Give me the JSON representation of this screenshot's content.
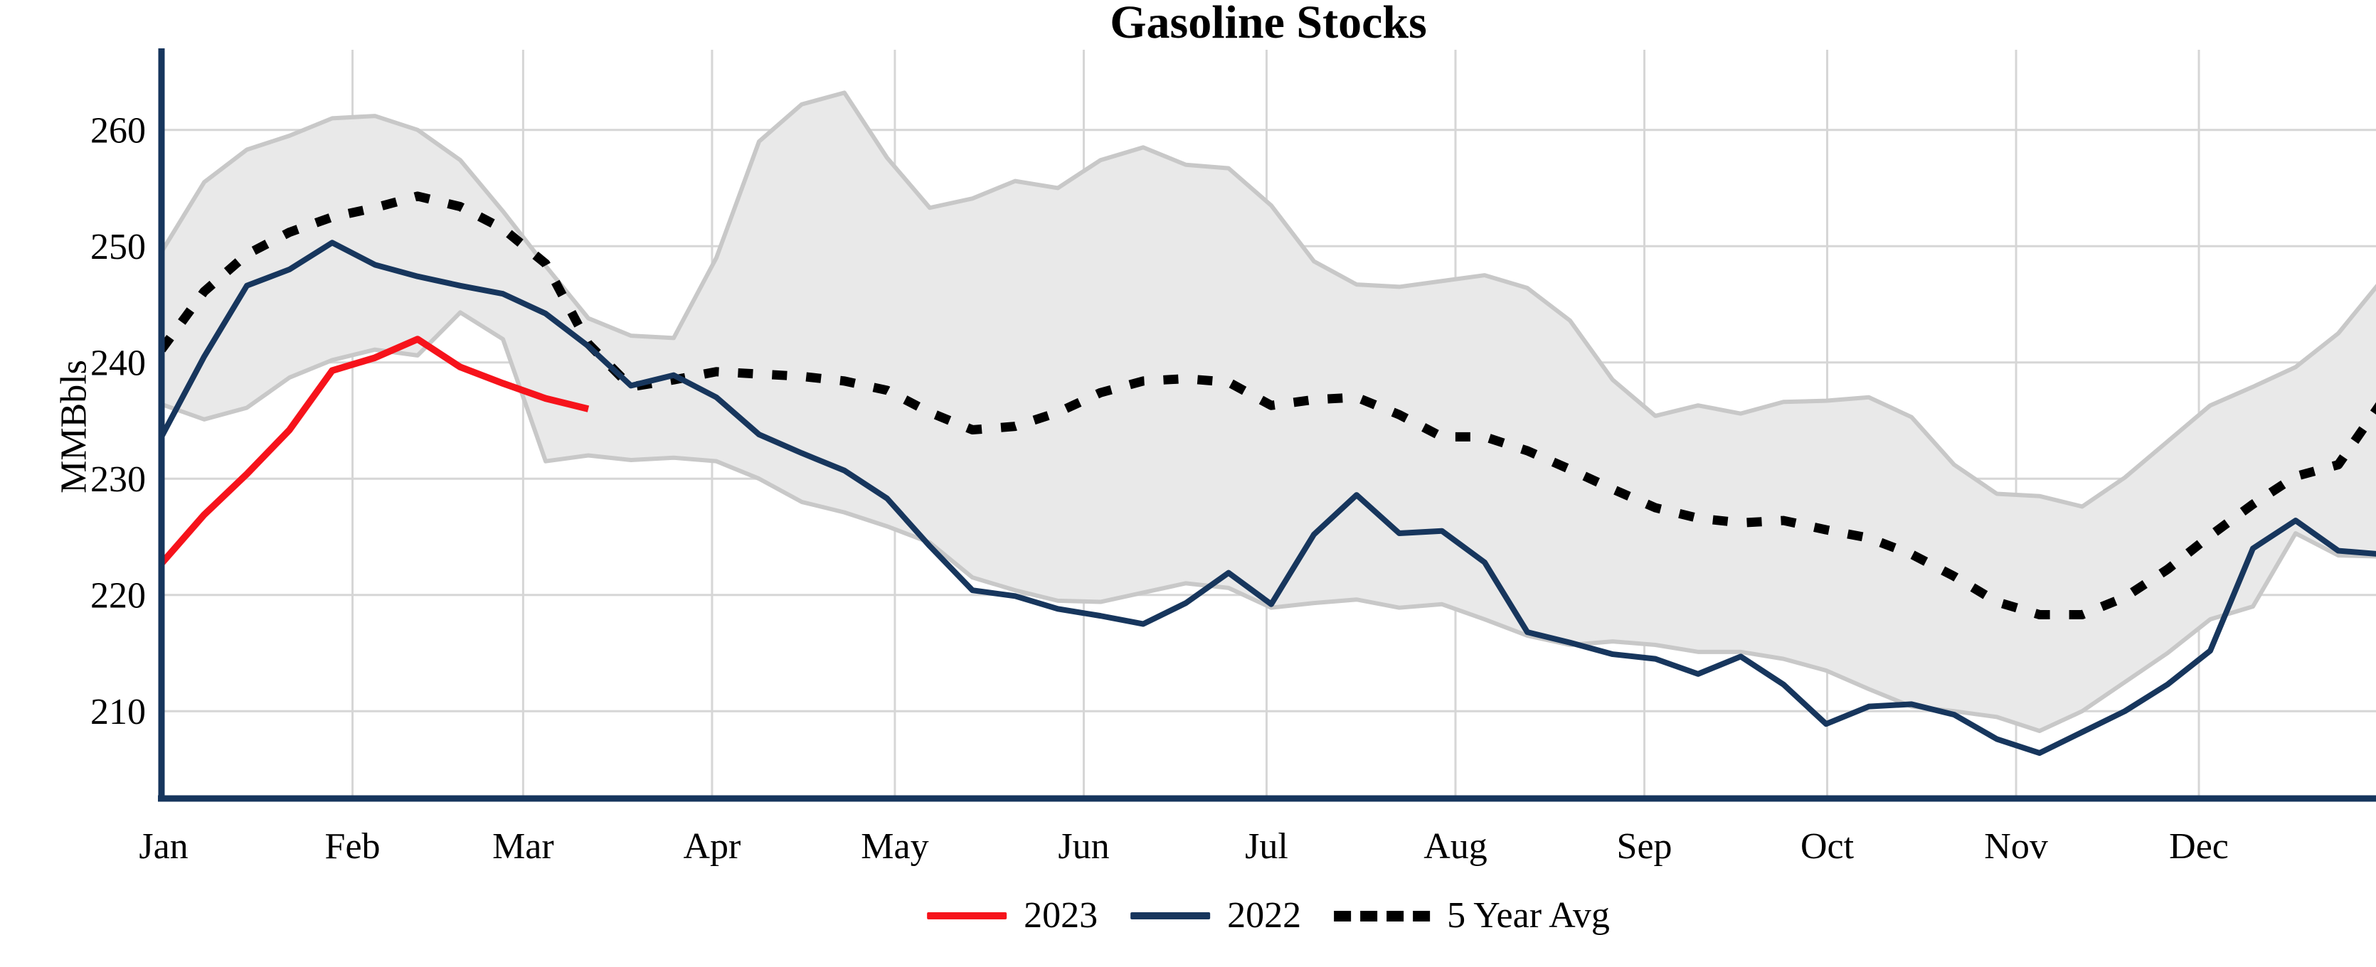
{
  "chart_data": {
    "type": "line",
    "title": "Gasoline Stocks",
    "ylabel": "MMBbls",
    "x_tick_labels": [
      "Jan",
      "Feb",
      "Mar",
      "Apr",
      "May",
      "Jun",
      "Jul",
      "Aug",
      "Sep",
      "Oct",
      "Nov",
      "Dec"
    ],
    "y_ticks": [
      210,
      220,
      230,
      240,
      250,
      260
    ],
    "y_axis_range_shown": [
      203,
      266
    ],
    "x_axis": "weekly points, Dec 31 2021 through Dec 30 2022 (53 weeks); 2023 series runs Jan through mid-March",
    "grid": true,
    "legend_position": "bottom-center",
    "colors": {
      "red_2023": "#f6131b",
      "navy_2022": "#17365d",
      "avg_dotted": "#000000",
      "band_fill": "#e9e9e9",
      "band_edge": "#c8c8c8",
      "gridline": "#d6d6d6",
      "axis_spine": "#17365d"
    },
    "series": [
      {
        "name": "2023",
        "color": "#f6131b",
        "style": "solid",
        "values": [
          222.7,
          226.9,
          230.4,
          234.2,
          239.3,
          240.4,
          242.0,
          239.6,
          238.2,
          236.9,
          236.0
        ]
      },
      {
        "name": "2022",
        "color": "#17365d",
        "style": "solid",
        "values": [
          233.6,
          240.5,
          246.6,
          248.0,
          250.3,
          248.4,
          247.4,
          246.6,
          245.9,
          244.2,
          241.4,
          238.0,
          238.9,
          237.0,
          233.8,
          232.2,
          230.7,
          228.3,
          224.2,
          220.4,
          219.9,
          218.8,
          218.2,
          217.5,
          219.3,
          221.9,
          219.2,
          225.2,
          228.6,
          225.3,
          225.5,
          222.8,
          216.8,
          215.9,
          214.9,
          214.5,
          213.2,
          214.7,
          212.3,
          208.9,
          210.4,
          210.6,
          209.7,
          207.6,
          206.4,
          208.2,
          210.0,
          212.3,
          215.2,
          224.0,
          226.4,
          223.8,
          223.5
        ]
      },
      {
        "name": "5 Year Avg",
        "color": "#000000",
        "style": "dotted",
        "values": [
          241.1,
          246.1,
          249.3,
          251.2,
          252.5,
          253.3,
          254.3,
          253.4,
          251.5,
          248.5,
          241.6,
          237.9,
          238.5,
          239.2,
          239.0,
          238.8,
          238.4,
          237.6,
          235.7,
          234.2,
          234.5,
          235.7,
          237.4,
          238.4,
          238.6,
          238.3,
          236.3,
          236.8,
          237.0,
          235.5,
          233.6,
          233.6,
          232.4,
          230.8,
          229.1,
          227.5,
          226.6,
          226.2,
          226.4,
          225.6,
          224.9,
          223.5,
          221.6,
          219.4,
          218.3,
          218.3,
          219.8,
          222.2,
          225.1,
          227.8,
          230.2,
          231.2,
          236.5
        ]
      }
    ],
    "band": {
      "name": "5-year range",
      "fill": "#e9e9e9",
      "edge": "#c8c8c8",
      "top": [
        249.5,
        255.5,
        258.3,
        259.5,
        261.0,
        261.2,
        260.0,
        257.4,
        253.0,
        248.3,
        243.8,
        242.3,
        242.1,
        249.0,
        259.0,
        262.2,
        263.2,
        257.6,
        253.3,
        254.1,
        255.6,
        255.0,
        257.4,
        258.5,
        257.0,
        256.7,
        253.5,
        248.7,
        246.7,
        246.5,
        247.0,
        247.5,
        246.4,
        243.6,
        238.5,
        235.4,
        236.3,
        235.6,
        236.6,
        236.7,
        237.0,
        235.3,
        231.2,
        228.7,
        228.5,
        227.6,
        230.1,
        233.2,
        236.3,
        237.9,
        239.6,
        242.5,
        247.0
      ],
      "bottom": [
        236.4,
        235.1,
        236.1,
        238.7,
        240.2,
        241.1,
        240.6,
        244.3,
        242.0,
        231.5,
        232.0,
        231.6,
        231.8,
        231.5,
        230.0,
        228.0,
        227.1,
        225.9,
        224.5,
        221.5,
        220.4,
        219.5,
        219.4,
        220.2,
        221.0,
        220.6,
        218.9,
        219.3,
        219.6,
        218.9,
        219.2,
        217.9,
        216.5,
        215.7,
        216.0,
        215.7,
        215.1,
        215.1,
        214.5,
        213.5,
        211.9,
        210.4,
        210.0,
        209.5,
        208.3,
        210.0,
        212.5,
        215.0,
        217.9,
        219.0,
        225.3,
        223.4,
        223.3
      ]
    }
  }
}
